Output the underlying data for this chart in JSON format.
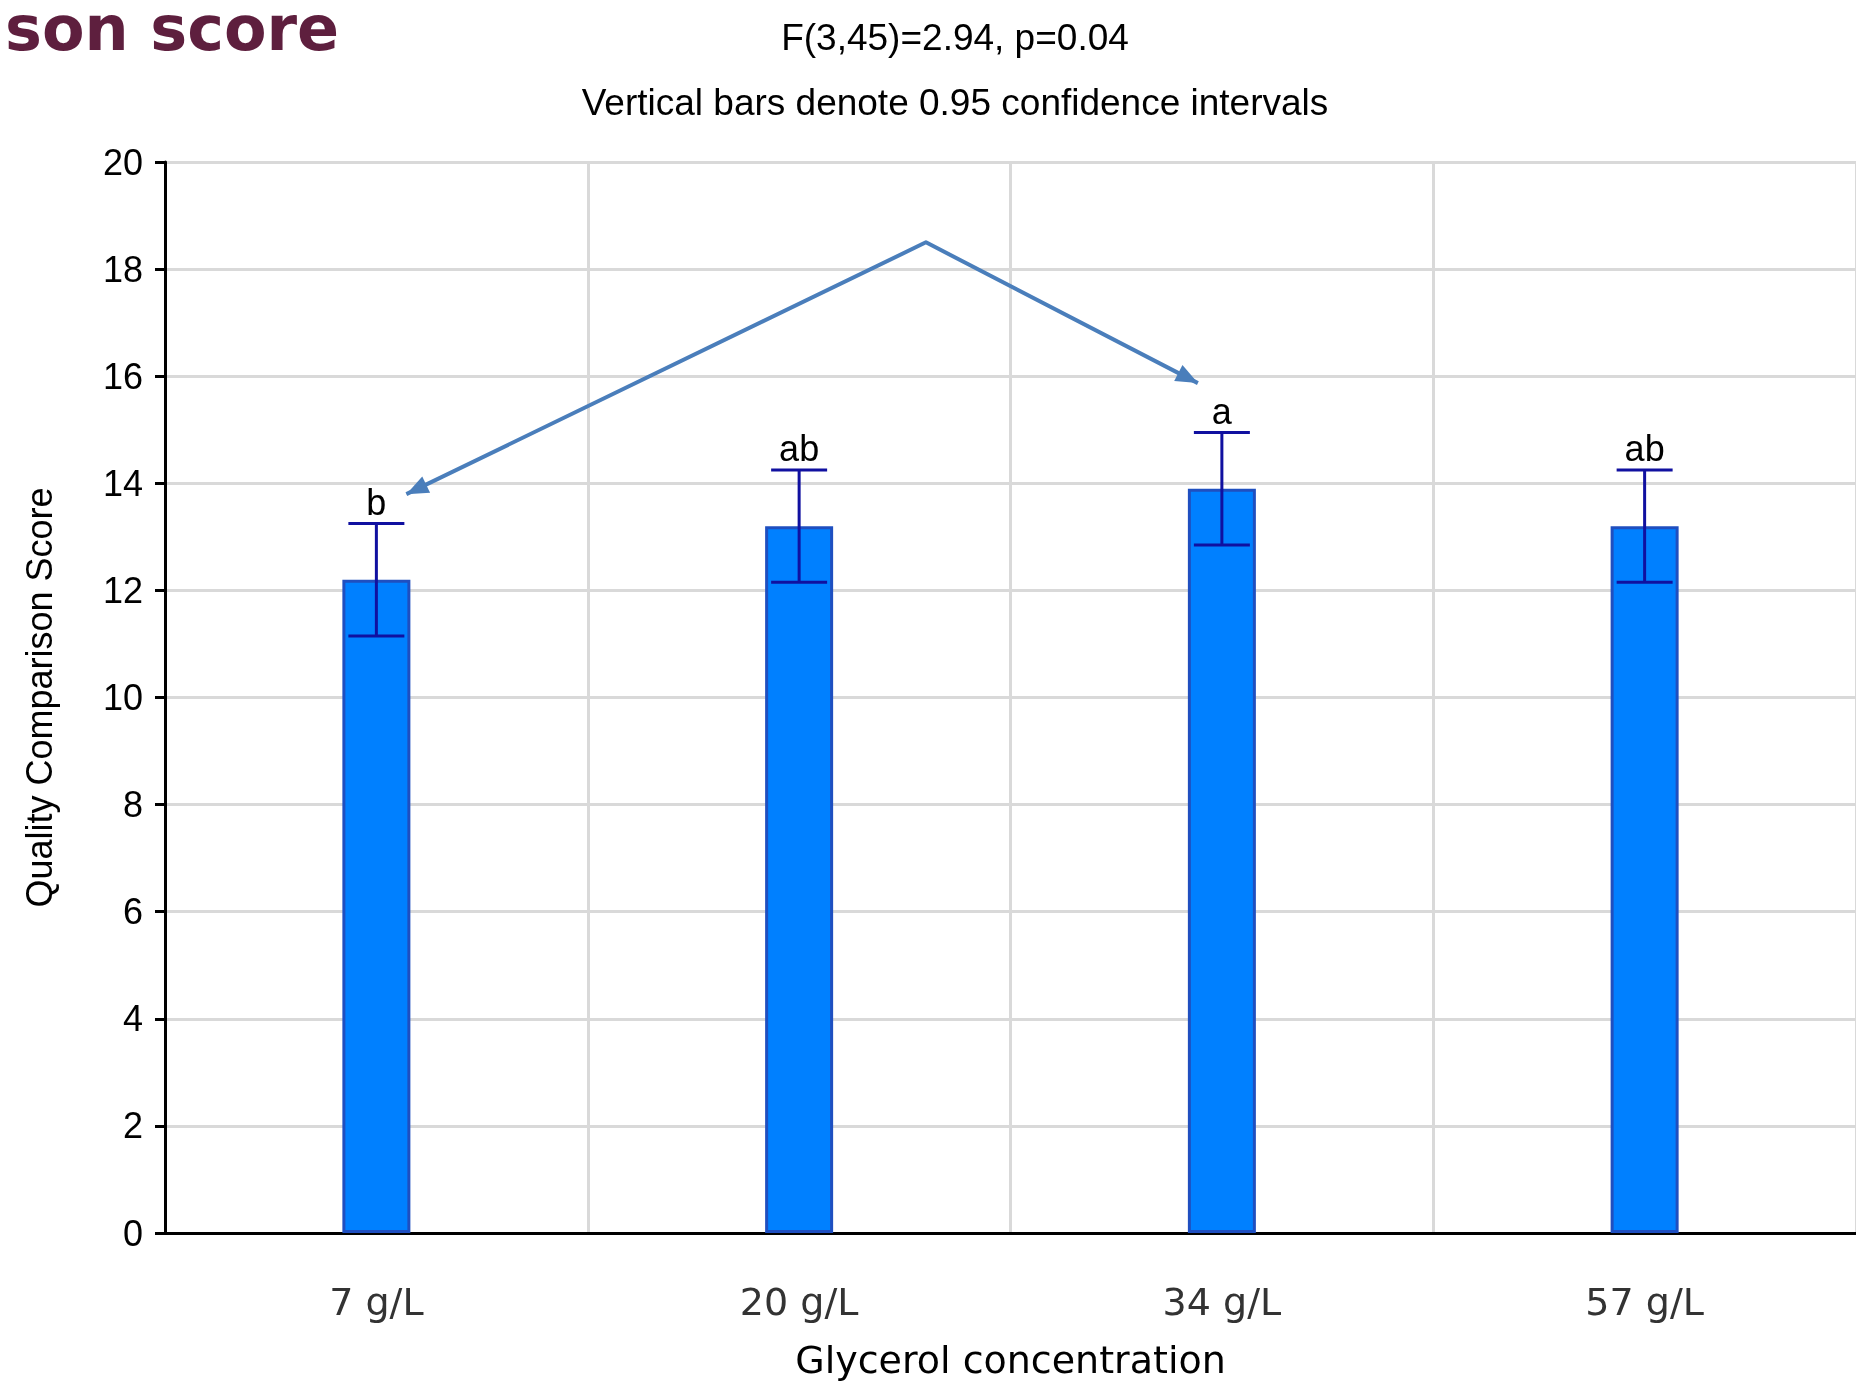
{
  "chart_data": {
    "type": "bar",
    "title": "son score",
    "subtitle": "F(3,45)=2.94, p=0.04\nVertical bars denote 0.95 confidence intervals",
    "xlabel": "Glycerol concentration",
    "ylabel": "Quality Comparison Score",
    "categories": [
      "7 g/L",
      "20 g/L",
      "34 g/L",
      "57 g/L"
    ],
    "values": [
      12.2,
      13.2,
      13.9,
      13.2
    ],
    "errors": [
      1.05,
      1.05,
      1.05,
      1.05
    ],
    "color": "#0080ff",
    "ylim": [
      0,
      20
    ],
    "yticks": [
      0,
      2,
      4,
      6,
      8,
      10,
      12,
      14,
      16,
      18,
      20
    ],
    "grid": true,
    "annotations": [
      {
        "text": "b",
        "x": "7 g/L",
        "y": 13.2
      },
      {
        "text": "ab",
        "x": "20 g/L",
        "y": 14.2
      },
      {
        "text": "a",
        "x": "34 g/L",
        "y": 14.9
      },
      {
        "text": "ab",
        "x": "57 g/L",
        "y": 14.2
      }
    ]
  }
}
